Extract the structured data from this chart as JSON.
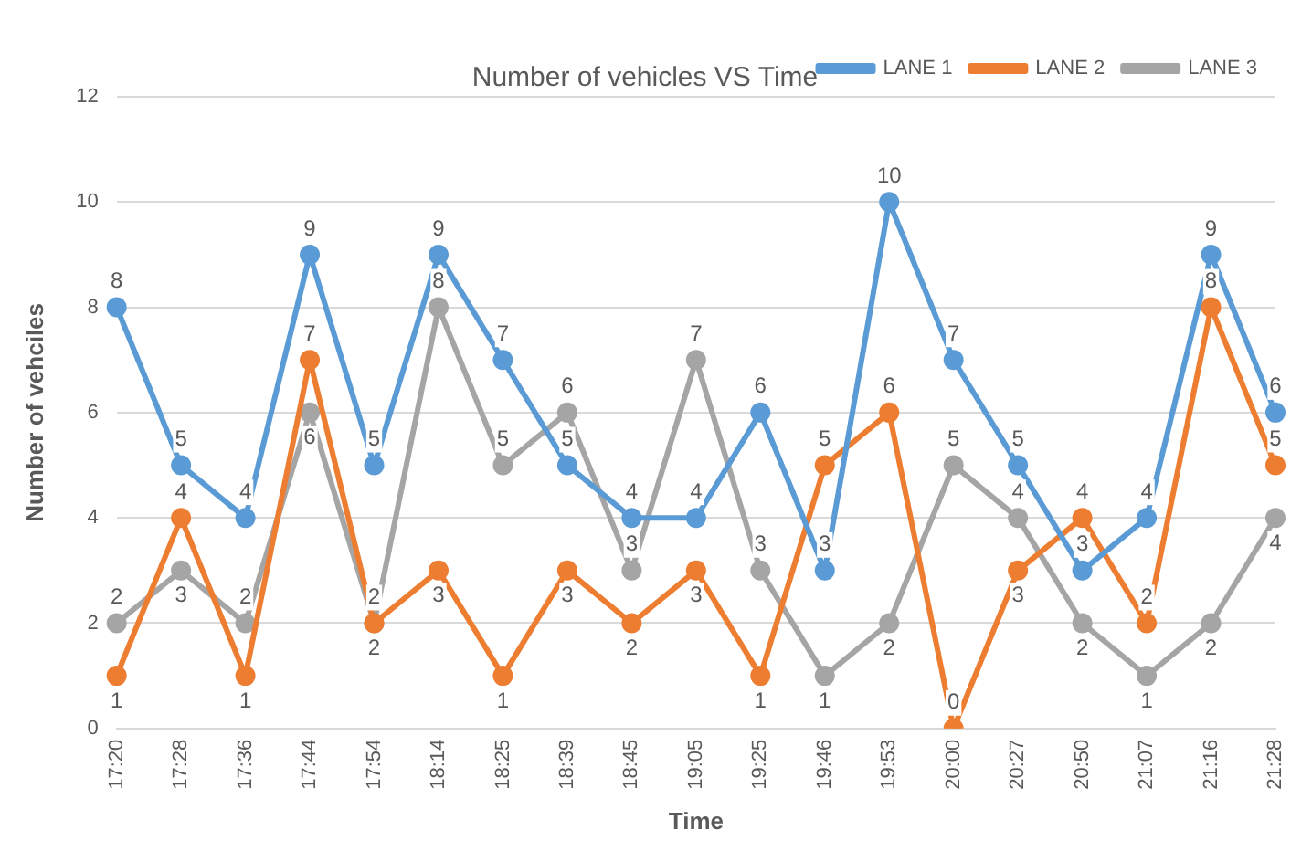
{
  "chart_data": {
    "type": "line",
    "title": "Number of vehicles VS Time",
    "xlabel": "Time",
    "ylabel": "Number of vehciles",
    "categories": [
      "17:20",
      "17:28",
      "17:36",
      "17:44",
      "17:54",
      "18:14",
      "18:25",
      "18:39",
      "18:45",
      "19:05",
      "19:25",
      "19:46",
      "19:53",
      "20:00",
      "20:27",
      "20:50",
      "21:07",
      "21:16",
      "21:28"
    ],
    "series": [
      {
        "name": "LANE 1",
        "color": "#5b9bd5",
        "values": [
          8,
          5,
          4,
          9,
          5,
          9,
          7,
          5,
          4,
          4,
          6,
          3,
          10,
          7,
          5,
          3,
          4,
          9,
          6
        ]
      },
      {
        "name": "LANE 2",
        "color": "#ed7d31",
        "values": [
          1,
          4,
          1,
          7,
          2,
          3,
          1,
          3,
          2,
          3,
          1,
          5,
          6,
          0,
          3,
          4,
          2,
          8,
          5
        ]
      },
      {
        "name": "LANE 3",
        "color": "#a5a5a5",
        "values": [
          2,
          3,
          2,
          6,
          2,
          8,
          5,
          6,
          3,
          7,
          3,
          1,
          2,
          5,
          4,
          2,
          1,
          2,
          4
        ]
      }
    ],
    "ylim": [
      0,
      12
    ],
    "yticks": [
      0,
      2,
      4,
      6,
      8,
      10,
      12
    ],
    "grid": "y",
    "legend": "top right",
    "marker": "circle",
    "line_style": "solid",
    "data_labels": true
  }
}
